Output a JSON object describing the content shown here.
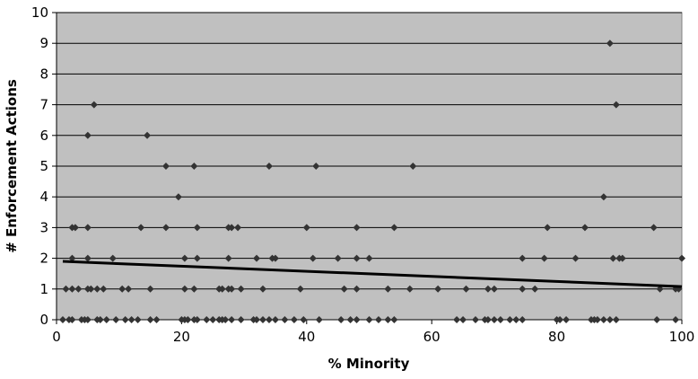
{
  "chart_data": {
    "type": "scatter",
    "title": "",
    "xlabel": "% Minority",
    "ylabel": "# Enforcement Actions",
    "xlim": [
      0,
      100
    ],
    "ylim": [
      0,
      10
    ],
    "x_ticks": [
      "0",
      "20",
      "40",
      "60",
      "80",
      "100"
    ],
    "y_ticks": [
      "0",
      "1",
      "2",
      "3",
      "4",
      "5",
      "6",
      "7",
      "8",
      "9",
      "10"
    ],
    "grid": "horizontal",
    "legend": "none",
    "colors": {
      "plot_bg": "#c0c0c0",
      "marker": "#333333",
      "trend": "#000000",
      "grid": "#000000"
    },
    "series": [
      {
        "marker": "diamond",
        "points": [
          [
            1,
            0
          ],
          [
            2,
            0
          ],
          [
            2.5,
            0
          ],
          [
            4,
            0
          ],
          [
            4.5,
            0
          ],
          [
            5,
            0
          ],
          [
            6.5,
            0
          ],
          [
            7,
            0
          ],
          [
            8,
            0
          ],
          [
            9.5,
            0
          ],
          [
            11,
            0
          ],
          [
            12,
            0
          ],
          [
            13,
            0
          ],
          [
            15,
            0
          ],
          [
            16,
            0
          ],
          [
            20,
            0
          ],
          [
            20.5,
            0
          ],
          [
            21,
            0
          ],
          [
            22,
            0
          ],
          [
            22.5,
            0
          ],
          [
            24,
            0
          ],
          [
            25,
            0
          ],
          [
            26,
            0
          ],
          [
            26.5,
            0
          ],
          [
            27,
            0
          ],
          [
            28,
            0
          ],
          [
            29.5,
            0
          ],
          [
            31.5,
            0
          ],
          [
            32,
            0
          ],
          [
            33,
            0
          ],
          [
            34,
            0
          ],
          [
            35,
            0
          ],
          [
            36.5,
            0
          ],
          [
            38,
            0
          ],
          [
            39.5,
            0
          ],
          [
            42,
            0
          ],
          [
            45.5,
            0
          ],
          [
            47,
            0
          ],
          [
            48,
            0
          ],
          [
            50,
            0
          ],
          [
            51.5,
            0
          ],
          [
            53,
            0
          ],
          [
            54,
            0
          ],
          [
            64,
            0
          ],
          [
            65,
            0
          ],
          [
            67,
            0
          ],
          [
            68.5,
            0
          ],
          [
            69,
            0
          ],
          [
            70,
            0
          ],
          [
            71,
            0
          ],
          [
            72.5,
            0
          ],
          [
            73.5,
            0
          ],
          [
            74.5,
            0
          ],
          [
            80,
            0
          ],
          [
            80.5,
            0
          ],
          [
            81.5,
            0
          ],
          [
            85.5,
            0
          ],
          [
            86,
            0
          ],
          [
            86.5,
            0
          ],
          [
            87.5,
            0
          ],
          [
            88.5,
            0
          ],
          [
            89.5,
            0
          ],
          [
            96,
            0
          ],
          [
            99,
            0
          ],
          [
            1.5,
            1
          ],
          [
            2.5,
            1
          ],
          [
            3.5,
            1
          ],
          [
            5,
            1
          ],
          [
            5.5,
            1
          ],
          [
            6.5,
            1
          ],
          [
            7.5,
            1
          ],
          [
            10.5,
            1
          ],
          [
            11.5,
            1
          ],
          [
            15,
            1
          ],
          [
            20.5,
            1
          ],
          [
            22,
            1
          ],
          [
            26,
            1
          ],
          [
            26.5,
            1
          ],
          [
            27.5,
            1
          ],
          [
            28,
            1
          ],
          [
            29.5,
            1
          ],
          [
            33,
            1
          ],
          [
            39,
            1
          ],
          [
            46,
            1
          ],
          [
            48,
            1
          ],
          [
            53,
            1
          ],
          [
            56.5,
            1
          ],
          [
            61,
            1
          ],
          [
            65.5,
            1
          ],
          [
            69,
            1
          ],
          [
            70,
            1
          ],
          [
            74.5,
            1
          ],
          [
            76.5,
            1
          ],
          [
            96.5,
            1
          ],
          [
            99,
            1
          ],
          [
            99.5,
            1
          ],
          [
            2.5,
            2
          ],
          [
            5,
            2
          ],
          [
            9,
            2
          ],
          [
            20.5,
            2
          ],
          [
            22.5,
            2
          ],
          [
            27.5,
            2
          ],
          [
            32,
            2
          ],
          [
            34.5,
            2
          ],
          [
            35,
            2
          ],
          [
            41,
            2
          ],
          [
            45,
            2
          ],
          [
            48,
            2
          ],
          [
            50,
            2
          ],
          [
            74.5,
            2
          ],
          [
            78,
            2
          ],
          [
            83,
            2
          ],
          [
            89,
            2
          ],
          [
            90,
            2
          ],
          [
            90.5,
            2
          ],
          [
            100,
            2
          ],
          [
            2.5,
            3
          ],
          [
            3,
            3
          ],
          [
            5,
            3
          ],
          [
            13.5,
            3
          ],
          [
            17.5,
            3
          ],
          [
            22.5,
            3
          ],
          [
            27.5,
            3
          ],
          [
            28,
            3
          ],
          [
            29,
            3
          ],
          [
            40,
            3
          ],
          [
            48,
            3
          ],
          [
            54,
            3
          ],
          [
            78.5,
            3
          ],
          [
            84.5,
            3
          ],
          [
            95.5,
            3
          ],
          [
            19.5,
            4
          ],
          [
            87.5,
            4
          ],
          [
            17.5,
            5
          ],
          [
            22,
            5
          ],
          [
            34,
            5
          ],
          [
            41.5,
            5
          ],
          [
            57,
            5
          ],
          [
            5,
            6
          ],
          [
            14.5,
            6
          ],
          [
            6,
            7
          ],
          [
            89.5,
            7
          ],
          [
            88.5,
            9
          ]
        ]
      }
    ],
    "trendline": {
      "type": "linear",
      "x": [
        1,
        100
      ],
      "y": [
        1.9,
        1.08
      ]
    }
  }
}
